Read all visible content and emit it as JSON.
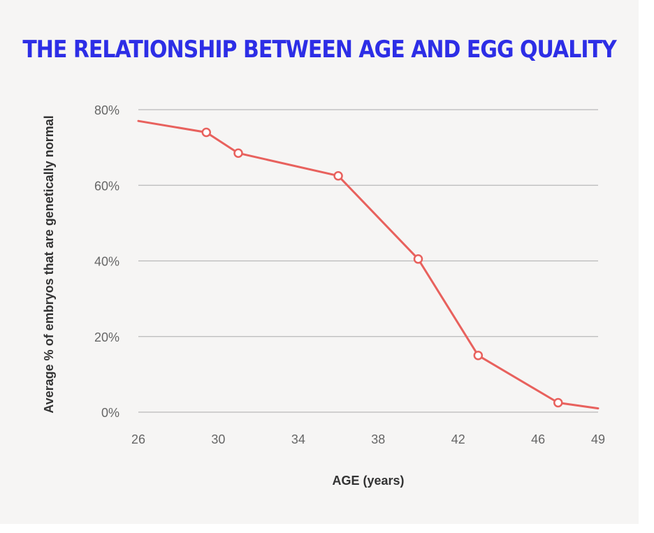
{
  "chart_data": {
    "type": "line",
    "title": "THE RELATIONSHIP BETWEEN AGE AND EGG QUALITY",
    "xlabel": "AGE (years)",
    "ylabel": "Average % of embryos that are genetically normal",
    "xlim": [
      26,
      49
    ],
    "ylim": [
      0,
      80
    ],
    "x_ticks": [
      26,
      30,
      34,
      38,
      42,
      46,
      49
    ],
    "x_tick_labels": [
      "26",
      "30",
      "34",
      "38",
      "42",
      "46",
      "49"
    ],
    "y_ticks": [
      0,
      20,
      40,
      60,
      80
    ],
    "y_tick_labels": [
      "0%",
      "20%",
      "40%",
      "60%",
      "80%"
    ],
    "grid": true,
    "series": [
      {
        "name": "Average % of embryos that are genetically normal",
        "x": [
          26,
          29.4,
          31,
          36,
          40,
          43,
          47,
          49
        ],
        "y": [
          77,
          74,
          68.5,
          62.5,
          40.5,
          15,
          2.5,
          1
        ],
        "marker_indices": [
          1,
          2,
          3,
          4,
          5,
          6
        ]
      }
    ],
    "colors": {
      "line": "#e8615d",
      "grid": "#b9b9b9",
      "title": "#2d2ee6",
      "background": "#f6f5f4"
    }
  }
}
